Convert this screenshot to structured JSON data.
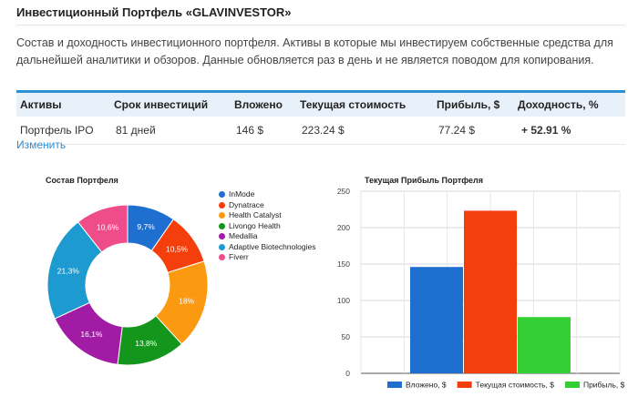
{
  "page": {
    "title": "Инвестиционный Портфель «GLAVINVESTOR»",
    "description": "Состав и доходность инвестиционного портфеля. Активы в которые мы инвестируем собственные средства для дальнейшей аналитики и обзоров. Данные обновляется раз в день и не является поводом для копирования."
  },
  "table": {
    "headers": [
      "Активы",
      "Срок инвестиций",
      "Вложено",
      "Текущая стоимость",
      "Прибыль, $",
      "Доходность, %"
    ],
    "row": [
      "Портфель IPO",
      "81 дней",
      "146 $",
      "223.24 $",
      "77.24 $",
      "+ 52.91 %"
    ]
  },
  "edit_link": "Изменить",
  "colors": {
    "accent": "#2e8fd3",
    "header_bg": "#e8f1fa"
  },
  "chart_data": [
    {
      "type": "pie",
      "donut": true,
      "title": "Состав Портфеля",
      "legend_position": "right",
      "slices": [
        {
          "label": "InMode",
          "value": 9.7,
          "display": "9,7%",
          "color": "#1f6fd1"
        },
        {
          "label": "Dynatrace",
          "value": 10.5,
          "display": "10,5%",
          "color": "#f43f0d"
        },
        {
          "label": "Health Catalyst",
          "value": 18,
          "display": "18%",
          "color": "#fb9a10"
        },
        {
          "label": "Livongo Health",
          "value": 13.8,
          "display": "13,8%",
          "color": "#13961b"
        },
        {
          "label": "Medallia",
          "value": 16.1,
          "display": "16,1%",
          "color": "#a21ba5"
        },
        {
          "label": "Adaptive Biotechnologies",
          "value": 21.3,
          "display": "21,3%",
          "color": "#1d9ad0"
        },
        {
          "label": "Fiverr",
          "value": 10.6,
          "display": "10,6%",
          "color": "#ef4c8a"
        }
      ]
    },
    {
      "type": "bar",
      "title": "Текущая Прибыль Портфеля",
      "categories": [
        ""
      ],
      "ylim": [
        0,
        250
      ],
      "yticks": [
        0,
        50,
        100,
        150,
        200,
        250
      ],
      "grid": true,
      "legend_position": "bottom",
      "series": [
        {
          "name": "Вложено, $",
          "values": [
            146
          ],
          "color": "#1f6fd1"
        },
        {
          "name": "Текущая стоимость, $",
          "values": [
            223.24
          ],
          "color": "#f43f0d"
        },
        {
          "name": "Прибыль, $",
          "values": [
            77.24
          ],
          "color": "#34cf34"
        }
      ]
    }
  ]
}
